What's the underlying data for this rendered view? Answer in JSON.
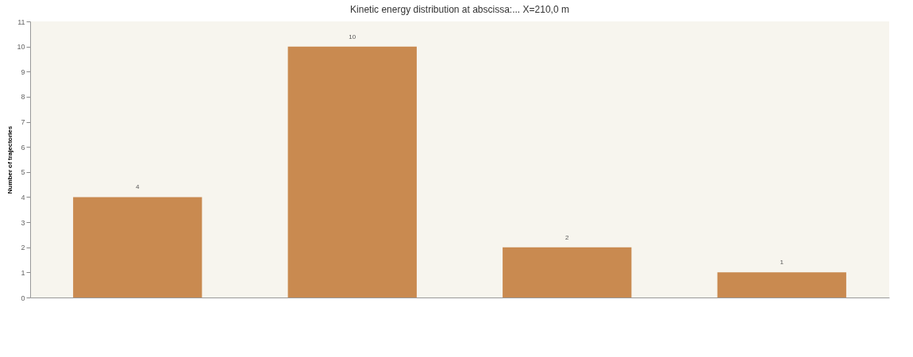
{
  "chart_data": {
    "type": "bar",
    "title": "Kinetic energy distribution at abscissa:... X=210,0 m",
    "ylabel": "Number of trajectories",
    "categories": [
      null,
      null,
      null,
      null
    ],
    "values": [
      4,
      10,
      2,
      1
    ],
    "color": "#c98a50",
    "ylim": [
      0,
      11
    ],
    "yticks": [
      0,
      1,
      2,
      3,
      4,
      5,
      6,
      7,
      8,
      9,
      10,
      11
    ],
    "data_labels": true
  }
}
